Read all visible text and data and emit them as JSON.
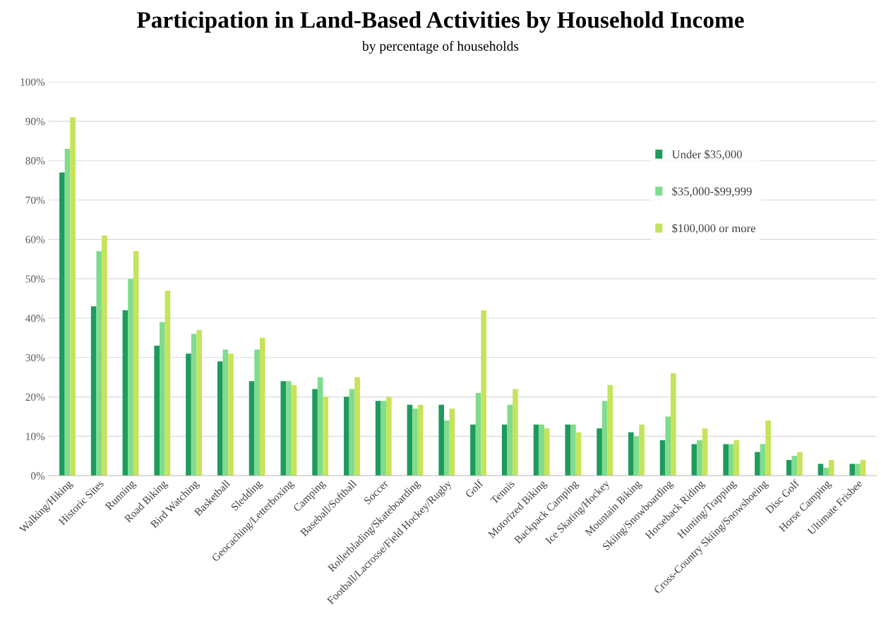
{
  "chart_data": {
    "type": "bar",
    "title": "Participation in Land-Based Activities by Household Income",
    "subtitle": "by percentage of households",
    "categories": [
      "Walking/Hiking",
      "Historic Sites",
      "Running",
      "Road Biking",
      "Bird Watching",
      "Basketball",
      "Sledding",
      "Geocaching/Letterboxing",
      "Camping",
      "Baseball/Softball",
      "Soccer",
      "Rollerblading/Skateboarding",
      "Football/Lacrosse/Field Hockey/Rugby",
      "Golf",
      "Tennis",
      "Motorized Biking",
      "Backpack Camping",
      "Ice Skating/Hockey",
      "Mountain Biking",
      "Skiing/Snowboarding",
      "Horseback Riding",
      "Hunting/Trapping",
      "Cross-Country Skiing/Snowshoeing",
      "Disc Golf",
      "Horse Camping",
      "Ultimate Frisbee"
    ],
    "series": [
      {
        "name": "Under $35,000",
        "color": "#1f9a5e",
        "values": [
          77,
          43,
          42,
          33,
          31,
          29,
          24,
          24,
          22,
          20,
          19,
          18,
          18,
          13,
          13,
          13,
          13,
          12,
          11,
          9,
          8,
          8,
          6,
          4,
          3,
          3
        ]
      },
      {
        "name": "$35,000-$99,999",
        "color": "#7fdc8c",
        "values": [
          83,
          57,
          50,
          39,
          36,
          32,
          32,
          24,
          25,
          22,
          19,
          17,
          14,
          21,
          18,
          13,
          13,
          19,
          10,
          15,
          9,
          8,
          8,
          5,
          2,
          3
        ]
      },
      {
        "name": "$100,000 or more",
        "color": "#c6e35c",
        "values": [
          91,
          61,
          57,
          47,
          37,
          31,
          35,
          23,
          20,
          25,
          20,
          18,
          17,
          42,
          22,
          12,
          11,
          23,
          13,
          26,
          12,
          9,
          14,
          6,
          4,
          4
        ]
      }
    ],
    "ylim": [
      0,
      100
    ],
    "yticks": [
      {
        "value": 0,
        "label": "0%"
      },
      {
        "value": 10,
        "label": "10%"
      },
      {
        "value": 20,
        "label": "20%"
      },
      {
        "value": 30,
        "label": "30%"
      },
      {
        "value": 40,
        "label": "40%"
      },
      {
        "value": 50,
        "label": "50%"
      },
      {
        "value": 60,
        "label": "60%"
      },
      {
        "value": 70,
        "label": "70%"
      },
      {
        "value": 80,
        "label": "80%"
      },
      {
        "value": 90,
        "label": "90%"
      },
      {
        "value": 100,
        "label": "100%"
      }
    ],
    "grid": "y",
    "legend": "right"
  }
}
